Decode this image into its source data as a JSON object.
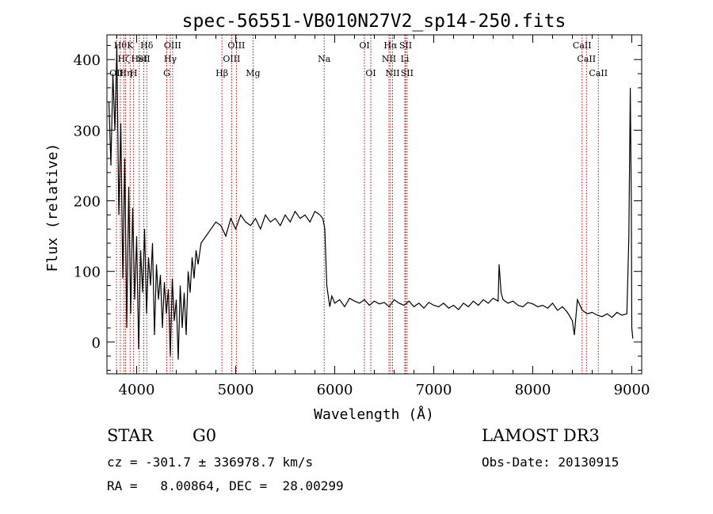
{
  "chart_data": {
    "type": "line",
    "title": "spec-56551-VB010N27V2_sp14-250.fits",
    "xlabel": "Wavelength (Å)",
    "ylabel": "Flux (relative)",
    "xlim": [
      3700,
      9100
    ],
    "ylim": [
      -45,
      435
    ],
    "x_ticks": [
      4000,
      5000,
      6000,
      7000,
      8000,
      9000
    ],
    "y_ticks": [
      0,
      100,
      200,
      300,
      400
    ],
    "grid": false,
    "line_color": "#000000",
    "marker_color": "#c00000",
    "series": [
      {
        "x": [
          3720,
          3740,
          3760,
          3780,
          3800,
          3820,
          3840,
          3860,
          3880,
          3900,
          3920,
          3940,
          3960,
          3980,
          4000,
          4020,
          4040,
          4060,
          4080,
          4100,
          4120,
          4140,
          4160,
          4180,
          4200,
          4220,
          4240,
          4260,
          4280,
          4300,
          4320,
          4340,
          4360,
          4380,
          4400,
          4420,
          4440,
          4460,
          4480,
          4500,
          4520,
          4540,
          4560,
          4580,
          4600,
          4620,
          4650,
          4700,
          4750,
          4800,
          4850,
          4900,
          4950,
          5000,
          5050,
          5100,
          5150,
          5200,
          5250,
          5300,
          5350,
          5400,
          5450,
          5500,
          5550,
          5600,
          5650,
          5700,
          5750,
          5800,
          5850,
          5880,
          5900,
          5920,
          5940,
          5950,
          5970,
          6000,
          6050,
          6100,
          6150,
          6200,
          6250,
          6300,
          6350,
          6400,
          6450,
          6500,
          6550,
          6600,
          6650,
          6700,
          6750,
          6800,
          6850,
          6900,
          6950,
          7000,
          7050,
          7100,
          7150,
          7200,
          7250,
          7300,
          7350,
          7400,
          7450,
          7500,
          7550,
          7600,
          7650,
          7660,
          7680,
          7700,
          7750,
          7800,
          7850,
          7900,
          7950,
          8000,
          8050,
          8100,
          8150,
          8200,
          8250,
          8300,
          8350,
          8400,
          8420,
          8450,
          8500,
          8550,
          8600,
          8650,
          8700,
          8750,
          8800,
          8850,
          8900,
          8950,
          8970,
          8985,
          8995,
          9000,
          9010
        ],
        "y": [
          340,
          250,
          380,
          300,
          420,
          180,
          310,
          90,
          260,
          20,
          220,
          40,
          190,
          60,
          150,
          -10,
          130,
          70,
          160,
          40,
          120,
          80,
          140,
          10,
          110,
          60,
          95,
          20,
          85,
          40,
          75,
          -20,
          90,
          30,
          60,
          -25,
          80,
          20,
          70,
          10,
          100,
          70,
          120,
          90,
          130,
          110,
          140,
          150,
          160,
          170,
          165,
          150,
          175,
          160,
          180,
          170,
          165,
          175,
          160,
          180,
          170,
          175,
          165,
          180,
          170,
          185,
          175,
          180,
          170,
          185,
          180,
          175,
          160,
          80,
          60,
          50,
          65,
          55,
          60,
          50,
          62,
          58,
          55,
          60,
          52,
          58,
          54,
          56,
          50,
          60,
          55,
          52,
          58,
          50,
          55,
          48,
          56,
          52,
          50,
          55,
          48,
          52,
          46,
          55,
          50,
          58,
          52,
          60,
          55,
          62,
          58,
          110,
          70,
          60,
          55,
          58,
          52,
          50,
          56,
          54,
          50,
          52,
          48,
          55,
          45,
          50,
          42,
          30,
          10,
          60,
          45,
          40,
          42,
          38,
          36,
          40,
          35,
          42,
          38,
          40,
          150,
          360,
          200,
          20,
          5
        ]
      }
    ],
    "line_markers": [
      {
        "wl": 3797,
        "row": 3,
        "label": "OII"
      },
      {
        "wl": 3835,
        "row": 1,
        "label": "Hθ"
      },
      {
        "wl": 3870,
        "row": 2,
        "label": "Hζ"
      },
      {
        "wl": 3889,
        "row": 3,
        "label": "Hη"
      },
      {
        "wl": 3934,
        "row": 1,
        "label": "K"
      },
      {
        "wl": 3969,
        "row": 3,
        "label": "H"
      },
      {
        "wl": 4026,
        "row": 2,
        "label": "HeI"
      },
      {
        "wl": 4072,
        "row": 2,
        "label": "SII"
      },
      {
        "wl": 4102,
        "row": 1,
        "label": "Hδ"
      },
      {
        "wl": 4304,
        "row": 3,
        "label": "G"
      },
      {
        "wl": 4340,
        "row": 2,
        "label": "Hγ"
      },
      {
        "wl": 4363,
        "row": 1,
        "label": "OIII"
      },
      {
        "wl": 4861,
        "row": 3,
        "label": "Hβ"
      },
      {
        "wl": 4959,
        "row": 2,
        "label": "OIII"
      },
      {
        "wl": 5007,
        "row": 1,
        "label": "OIII"
      },
      {
        "wl": 5175,
        "row": 3,
        "label": "Mg"
      },
      {
        "wl": 5894,
        "row": 2,
        "label": "Na"
      },
      {
        "wl": 6300,
        "row": 1,
        "label": "OI"
      },
      {
        "wl": 6364,
        "row": 3,
        "label": "OI"
      },
      {
        "wl": 6548,
        "row": 2,
        "label": "NII"
      },
      {
        "wl": 6563,
        "row": 1,
        "label": "Hα"
      },
      {
        "wl": 6584,
        "row": 3,
        "label": "NII"
      },
      {
        "wl": 6708,
        "row": 2,
        "label": "Li"
      },
      {
        "wl": 6716,
        "row": 1,
        "label": "SII"
      },
      {
        "wl": 6731,
        "row": 3,
        "label": "SII"
      },
      {
        "wl": 8498,
        "row": 1,
        "label": "CaII"
      },
      {
        "wl": 8542,
        "row": 2,
        "label": "CaII"
      },
      {
        "wl": 8662,
        "row": 3,
        "label": "CaII"
      }
    ]
  },
  "info": {
    "class_label": "STAR",
    "subclass_label": "G0",
    "survey_label": "LAMOST DR3",
    "cz_text": "cz = -301.7 ± 336978.7 km/s",
    "obs_date_text": "Obs-Date: 20130915",
    "radec_text": "RA =   8.00864, DEC =  28.00299"
  }
}
